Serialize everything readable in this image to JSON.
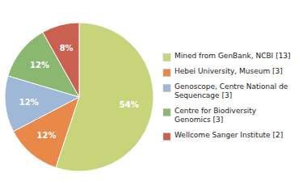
{
  "chart_data": {
    "type": "pie",
    "categories": [
      "Mined from GenBank, NCBI [13]",
      "Hebei University, Museum [3]",
      "Genoscope, Centre National de\nSequencage [3]",
      "Centre for Biodiversity\nGenomics [3]",
      "Wellcome Sanger Institute [2]"
    ],
    "values": [
      54,
      12,
      12,
      12,
      8
    ],
    "value_labels": [
      "54%",
      "12%",
      "12%",
      "12%",
      "8%"
    ],
    "colors": [
      "#c8d47a",
      "#e8894a",
      "#a0b8d8",
      "#8ab870",
      "#c96050"
    ],
    "data_labels": true,
    "legend": "right"
  }
}
